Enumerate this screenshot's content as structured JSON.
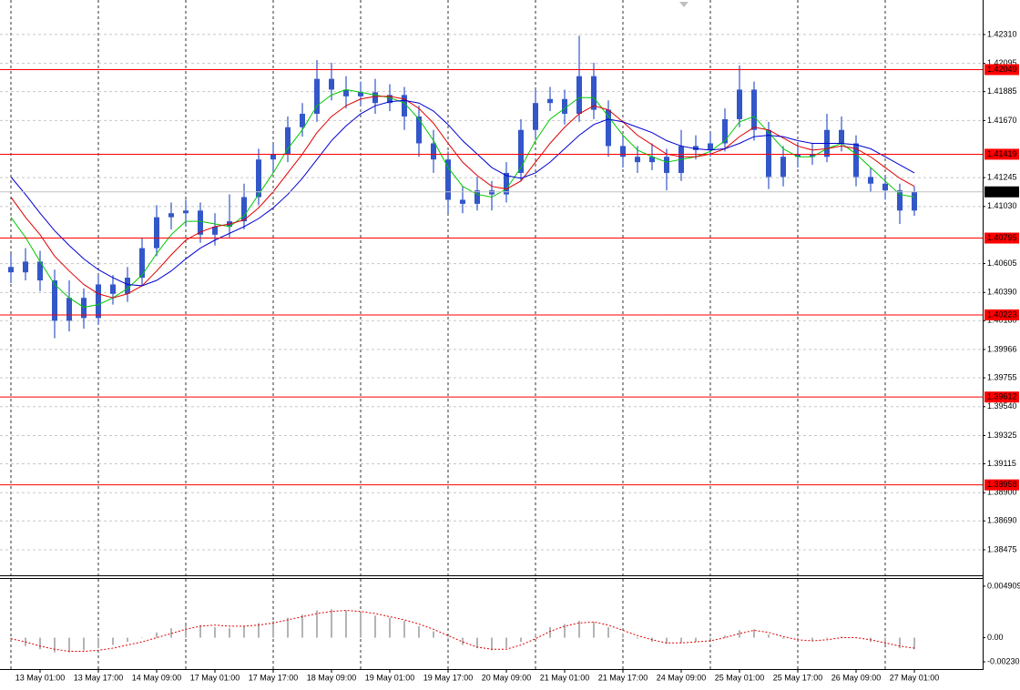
{
  "chart_data": [
    {
      "type": "candlestick",
      "categories": [
        null,
        null,
        "13 May 01:00",
        null,
        null,
        null,
        "13 May 17:00",
        null,
        null,
        null,
        "14 May 09:00",
        null,
        null,
        null,
        "17 May 01:00",
        null,
        null,
        null,
        "17 May 17:00",
        null,
        null,
        null,
        "18 May 09:00",
        null,
        null,
        null,
        "19 May 01:00",
        null,
        null,
        null,
        "19 May 17:00",
        null,
        null,
        null,
        "20 May 09:00",
        null,
        null,
        null,
        "21 May 01:00",
        null,
        null,
        null,
        "21 May 17:00",
        null,
        null,
        null,
        "24 May 09:00",
        null,
        null,
        null,
        "25 May 01:00",
        null,
        null,
        null,
        "25 May 17:00",
        null,
        null,
        null,
        "26 May 09:00",
        null,
        null,
        null,
        "27 May 01:00"
      ],
      "open": [
        1.4058,
        1.4054,
        1.4062,
        1.4048,
        1.4018,
        1.4035,
        1.402,
        1.4045,
        1.4038,
        1.405,
        1.4072,
        1.4095,
        1.4098,
        1.41,
        1.4082,
        1.4088,
        1.4092,
        1.411,
        1.4138,
        1.4142,
        1.4162,
        1.4172,
        1.4198,
        1.419,
        1.4185,
        1.4188,
        1.418,
        1.4186,
        1.417,
        1.415,
        1.4138,
        1.4108,
        1.4105,
        1.4115,
        1.4112,
        1.4128,
        1.416,
        1.418,
        1.4183,
        1.4172,
        1.42,
        1.4175,
        1.4148,
        1.414,
        1.4136,
        1.414,
        1.4128,
        1.4148,
        1.4145,
        1.415,
        1.4168,
        1.419,
        1.416,
        1.4125,
        1.414,
        1.4142,
        1.414,
        1.416,
        1.415,
        1.4125,
        1.412,
        1.4115,
        1.41
      ],
      "high": [
        1.4068,
        1.4072,
        1.407,
        1.4056,
        1.4048,
        1.4042,
        1.4052,
        1.4052,
        1.4058,
        1.408,
        1.4104,
        1.4106,
        1.4108,
        1.4106,
        1.4098,
        1.4112,
        1.412,
        1.4146,
        1.415,
        1.417,
        1.418,
        1.4212,
        1.421,
        1.42,
        1.4196,
        1.4198,
        1.4194,
        1.4192,
        1.4178,
        1.416,
        1.4144,
        1.4118,
        1.4125,
        1.4122,
        1.4136,
        1.4168,
        1.419,
        1.4192,
        1.419,
        1.423,
        1.421,
        1.4182,
        1.4156,
        1.4148,
        1.415,
        1.4146,
        1.416,
        1.4156,
        1.4158,
        1.4176,
        1.4208,
        1.4196,
        1.4166,
        1.4148,
        1.415,
        1.415,
        1.4172,
        1.417,
        1.4156,
        1.4132,
        1.4126,
        1.412,
        1.4118
      ],
      "low": [
        1.4046,
        1.4048,
        1.404,
        1.4005,
        1.401,
        1.4012,
        1.4015,
        1.403,
        1.4032,
        1.4044,
        1.4066,
        1.4086,
        1.4088,
        1.4076,
        1.4074,
        1.408,
        1.4086,
        1.4104,
        1.4128,
        1.4136,
        1.4155,
        1.4166,
        1.4182,
        1.4176,
        1.4178,
        1.4172,
        1.4174,
        1.416,
        1.414,
        1.4128,
        1.4098,
        1.4098,
        1.41,
        1.41,
        1.4106,
        1.4122,
        1.4154,
        1.4174,
        1.4164,
        1.4166,
        1.4168,
        1.414,
        1.4132,
        1.4128,
        1.413,
        1.4115,
        1.4122,
        1.4138,
        1.414,
        1.4144,
        1.4162,
        1.4152,
        1.4116,
        1.4118,
        1.4132,
        1.4134,
        1.4136,
        1.4144,
        1.4118,
        1.4114,
        1.4108,
        1.409,
        1.4096
      ],
      "close": [
        1.4054,
        1.4062,
        1.4048,
        1.4018,
        1.4035,
        1.402,
        1.4045,
        1.4038,
        1.405,
        1.4072,
        1.4095,
        1.4098,
        1.41,
        1.4082,
        1.4088,
        1.4092,
        1.411,
        1.4138,
        1.4142,
        1.4162,
        1.4172,
        1.4198,
        1.419,
        1.4185,
        1.4188,
        1.418,
        1.4186,
        1.417,
        1.415,
        1.4138,
        1.4108,
        1.4105,
        1.4115,
        1.4112,
        1.4128,
        1.416,
        1.418,
        1.4183,
        1.4172,
        1.42,
        1.4175,
        1.4148,
        1.414,
        1.4136,
        1.414,
        1.4128,
        1.4148,
        1.4145,
        1.415,
        1.4168,
        1.419,
        1.416,
        1.4125,
        1.414,
        1.4142,
        1.414,
        1.416,
        1.415,
        1.4125,
        1.412,
        1.4115,
        1.41,
        1.4114
      ],
      "color": "#3356c9",
      "ma_lines": [
        {
          "color": "#00c800",
          "values": [
            1.4095,
            1.408,
            1.4062,
            1.4045,
            1.4035,
            1.4028,
            1.403,
            1.4035,
            1.4042,
            1.4052,
            1.4068,
            1.4082,
            1.4092,
            1.4092,
            1.409,
            1.4088,
            1.4096,
            1.4112,
            1.4128,
            1.4146,
            1.416,
            1.4178,
            1.4186,
            1.419,
            1.4188,
            1.4186,
            1.4184,
            1.418,
            1.4168,
            1.4152,
            1.4132,
            1.4118,
            1.4112,
            1.411,
            1.4116,
            1.4132,
            1.4152,
            1.4168,
            1.4176,
            1.4184,
            1.4184,
            1.417,
            1.4156,
            1.4145,
            1.414,
            1.4136,
            1.4138,
            1.414,
            1.4144,
            1.4152,
            1.4166,
            1.417,
            1.4158,
            1.4146,
            1.414,
            1.414,
            1.4146,
            1.415,
            1.4142,
            1.4132,
            1.4122,
            1.4112,
            1.411
          ]
        },
        {
          "color": "#e00000",
          "values": [
            1.411,
            1.4095,
            1.4082,
            1.4066,
            1.4055,
            1.4045,
            1.4038,
            1.4035,
            1.4038,
            1.4044,
            1.4055,
            1.4067,
            1.4078,
            1.4084,
            1.4088,
            1.409,
            1.4093,
            1.4102,
            1.4114,
            1.4128,
            1.4142,
            1.4158,
            1.417,
            1.4178,
            1.4183,
            1.4185,
            1.4185,
            1.4183,
            1.4176,
            1.4165,
            1.415,
            1.4136,
            1.4126,
            1.4118,
            1.4116,
            1.4122,
            1.4136,
            1.415,
            1.4162,
            1.4172,
            1.4178,
            1.4175,
            1.4166,
            1.4156,
            1.4149,
            1.4142,
            1.414,
            1.414,
            1.4142,
            1.4146,
            1.4155,
            1.4162,
            1.416,
            1.4154,
            1.4148,
            1.4145,
            1.4146,
            1.4148,
            1.4146,
            1.414,
            1.4132,
            1.4124,
            1.4118
          ]
        },
        {
          "color": "#0000d0",
          "values": [
            1.4125,
            1.4112,
            1.4098,
            1.4085,
            1.4074,
            1.4064,
            1.4056,
            1.405,
            1.4045,
            1.4044,
            1.4048,
            1.4055,
            1.4064,
            1.4072,
            1.4078,
            1.4083,
            1.4088,
            1.4094,
            1.4102,
            1.4112,
            1.4124,
            1.4138,
            1.4152,
            1.4163,
            1.4172,
            1.4178,
            1.4181,
            1.4182,
            1.418,
            1.4174,
            1.4164,
            1.4152,
            1.4142,
            1.4132,
            1.4126,
            1.4124,
            1.4128,
            1.4136,
            1.4146,
            1.4156,
            1.4164,
            1.4168,
            1.4166,
            1.4162,
            1.4158,
            1.4152,
            1.4148,
            1.4146,
            1.4145,
            1.4146,
            1.415,
            1.4155,
            1.4156,
            1.4155,
            1.4152,
            1.415,
            1.415,
            1.415,
            1.4149,
            1.4146,
            1.414,
            1.4134,
            1.4128
          ]
        }
      ],
      "ylim": [
        1.38285,
        1.42567
      ],
      "yticks": [
        {
          "value": 1.4231,
          "label": "1.42310"
        },
        1.42095,
        1.41885,
        {
          "value": 1.4167,
          "label": "1.41670"
        },
        1.41245,
        {
          "value": 1.4103,
          "label": "1.41030"
        },
        1.40605,
        {
          "value": 1.4039,
          "label": "1.40390"
        },
        {
          "value": 1.4018,
          "label": "1.40180"
        },
        1.39966,
        1.39755,
        {
          "value": 1.3954,
          "label": "1.39540"
        },
        1.39325,
        1.39115,
        {
          "value": 1.389,
          "label": "1.38900"
        },
        {
          "value": 1.3869,
          "label": "1.38690"
        },
        1.38475
      ],
      "levels": [
        1.42049,
        1.41419,
        1.40795,
        1.40223,
        1.39612,
        1.38958
      ],
      "level_color": "#ff0000",
      "last_price": 1.41139,
      "grid": true
    },
    {
      "type": "oscillator",
      "histogram": [
        -0.0003,
        -0.0008,
        -0.0011,
        -0.0014,
        -0.0014,
        -0.0012,
        -0.001,
        -0.0007,
        -0.0004,
        0.0,
        0.0005,
        0.0009,
        0.0012,
        0.0012,
        0.001,
        0.0009,
        0.0011,
        0.0014,
        0.0016,
        0.0019,
        0.0022,
        0.0026,
        0.0027,
        0.0026,
        0.0024,
        0.0021,
        0.0019,
        0.0016,
        0.0011,
        0.0006,
        -0.0001,
        -0.0007,
        -0.001,
        -0.0012,
        -0.001,
        -0.0004,
        0.0004,
        0.001,
        0.0013,
        0.0016,
        0.0015,
        0.001,
        0.0004,
        -0.0001,
        -0.0004,
        -0.0006,
        -0.0005,
        -0.0004,
        -0.0002,
        0.0002,
        0.0007,
        0.0008,
        0.0003,
        -0.0001,
        -0.0003,
        -0.0003,
        -0.0001,
        0.0001,
        0.0,
        -0.0004,
        -0.0007,
        -0.001,
        -0.0011
      ],
      "signal": [
        -0.0001,
        -0.0004,
        -0.0008,
        -0.0011,
        -0.0013,
        -0.0013,
        -0.0012,
        -0.001,
        -0.0007,
        -0.0004,
        0.0,
        0.0004,
        0.0008,
        0.0011,
        0.0012,
        0.0011,
        0.0011,
        0.0012,
        0.0014,
        0.0017,
        0.002,
        0.0023,
        0.0025,
        0.0026,
        0.0025,
        0.0023,
        0.002,
        0.0017,
        0.0013,
        0.0008,
        0.0002,
        -0.0004,
        -0.0009,
        -0.0011,
        -0.0011,
        -0.0007,
        -0.0001,
        0.0006,
        0.0011,
        0.0014,
        0.0015,
        0.0012,
        0.0007,
        0.0002,
        -0.0002,
        -0.0005,
        -0.0005,
        -0.0004,
        -0.0003,
        0.0,
        0.0004,
        0.0007,
        0.0005,
        0.0001,
        -0.0002,
        -0.0003,
        -0.0002,
        0.0,
        0.0,
        -0.0002,
        -0.0005,
        -0.0008,
        -0.001
      ],
      "histogram_color": "#b4b4b4",
      "signal_color": "#e00000",
      "ylim": [
        -0.00299,
        0.005597
      ],
      "yticks": [
        0.004909,
        {
          "value": 0,
          "label": "0.00"
        },
        {
          "value": -0.0023,
          "label": "-0.00230"
        }
      ]
    }
  ]
}
